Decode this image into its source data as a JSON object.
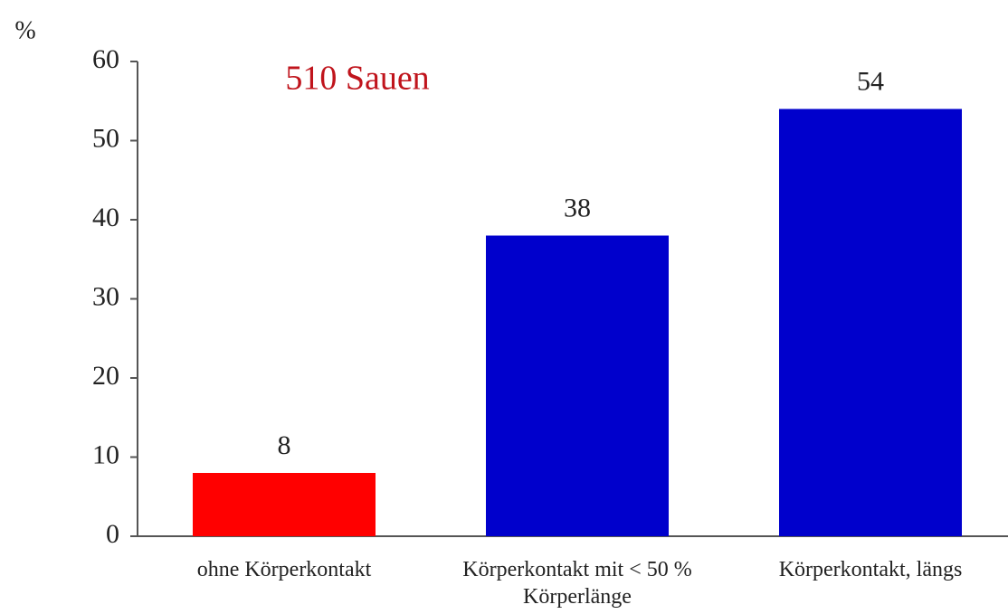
{
  "chart_data": {
    "type": "bar",
    "y_axis_label": "%",
    "annotation": "510 Sauen",
    "annotation_color": "#c0141c",
    "categories": [
      "ohne Körperkontakt",
      "Körperkontakt mit < 50 % Körperlänge",
      "Körperkontakt, längs"
    ],
    "values": [
      8,
      38,
      54
    ],
    "colors": [
      "#ff0000",
      "#0000cc",
      "#0000cc"
    ],
    "ylim": [
      0,
      60
    ],
    "yticks": [
      0,
      10,
      20,
      30,
      40,
      50,
      60
    ],
    "grid": false
  }
}
